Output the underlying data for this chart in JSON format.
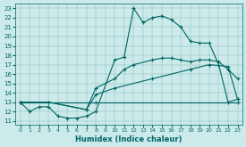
{
  "xlabel": "Humidex (Indice chaleur)",
  "bg_color": "#cceaea",
  "line_color": "#006666",
  "xlim": [
    -0.5,
    23.5
  ],
  "ylim": [
    10.6,
    23.5
  ],
  "xticks": [
    0,
    1,
    2,
    3,
    4,
    5,
    6,
    7,
    8,
    9,
    10,
    11,
    12,
    13,
    14,
    15,
    16,
    17,
    18,
    19,
    20,
    21,
    22,
    23
  ],
  "yticks": [
    11,
    12,
    13,
    14,
    15,
    16,
    17,
    18,
    19,
    20,
    21,
    22,
    23
  ],
  "series": [
    {
      "x": [
        0,
        1,
        2,
        3,
        4,
        5,
        6,
        7,
        8,
        10,
        11,
        12,
        13,
        14,
        15,
        16,
        17,
        18,
        19,
        20,
        21,
        22,
        23
      ],
      "y": [
        13,
        12,
        12.5,
        12.5,
        11.5,
        11.3,
        11.3,
        11.5,
        12.0,
        17.5,
        17.8,
        23.0,
        21.5,
        22.0,
        22.2,
        21.8,
        21.0,
        19.5,
        19.3,
        19.3,
        17.0,
        13.0,
        13.3
      ]
    },
    {
      "x": [
        0,
        3,
        7,
        8,
        10,
        11,
        12,
        14,
        15,
        16,
        17,
        18,
        19,
        20,
        21,
        22,
        23
      ],
      "y": [
        13,
        13,
        12.2,
        14.5,
        15.5,
        16.5,
        17.0,
        17.5,
        17.7,
        17.7,
        17.5,
        17.3,
        17.5,
        17.5,
        17.3,
        16.5,
        15.5
      ]
    },
    {
      "x": [
        0,
        3,
        7,
        8,
        10,
        14,
        18,
        20,
        22,
        23
      ],
      "y": [
        13,
        13,
        12.2,
        13.8,
        14.5,
        15.5,
        16.5,
        17.0,
        16.8,
        13.3
      ]
    },
    {
      "x": [
        0,
        8,
        23
      ],
      "y": [
        13,
        13,
        13
      ]
    }
  ]
}
